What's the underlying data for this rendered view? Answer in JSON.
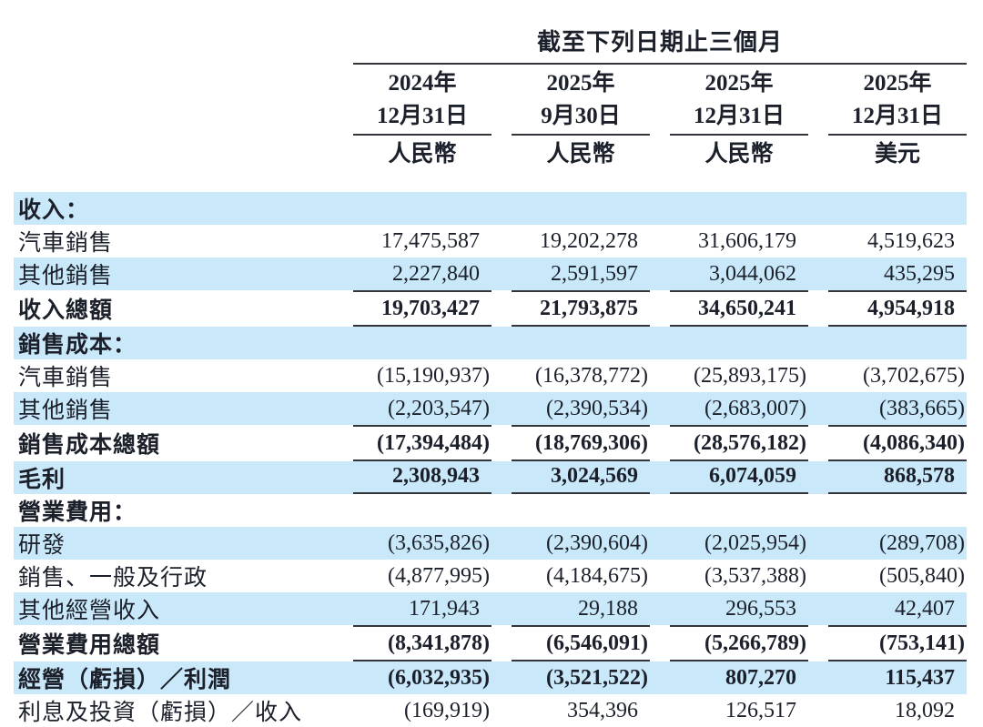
{
  "table": {
    "title": "截至下列日期止三個月",
    "columns": [
      {
        "year": "2024年",
        "date": "12月31日",
        "currency": "人民幣"
      },
      {
        "year": "2025年",
        "date": "9月30日",
        "currency": "人民幣"
      },
      {
        "year": "2025年",
        "date": "12月31日",
        "currency": "人民幣"
      },
      {
        "year": "2025年",
        "date": "12月31日",
        "currency": "美元"
      }
    ],
    "rows": [
      {
        "label": "收入：",
        "values": [
          "",
          "",
          "",
          ""
        ],
        "bold": true,
        "stripe": true,
        "section": true
      },
      {
        "label": "汽車銷售",
        "values": [
          "17,475,587",
          "19,202,278",
          "31,606,179",
          "4,519,623"
        ],
        "bold": false,
        "stripe": false
      },
      {
        "label": "其他銷售",
        "values": [
          "2,227,840",
          "2,591,597",
          "3,044,062",
          "435,295"
        ],
        "bold": false,
        "stripe": true
      },
      {
        "label": "收入總額",
        "values": [
          "19,703,427",
          "21,793,875",
          "34,650,241",
          "4,954,918"
        ],
        "bold": true,
        "stripe": false,
        "rule_top": true,
        "rule_bottom": true
      },
      {
        "label": "銷售成本：",
        "values": [
          "",
          "",
          "",
          ""
        ],
        "bold": true,
        "stripe": true,
        "section": true
      },
      {
        "label": "汽車銷售",
        "values": [
          "(15,190,937)",
          "(16,378,772)",
          "(25,893,175)",
          "(3,702,675)"
        ],
        "bold": false,
        "stripe": false
      },
      {
        "label": "其他銷售",
        "values": [
          "(2,203,547)",
          "(2,390,534)",
          "(2,683,007)",
          "(383,665)"
        ],
        "bold": false,
        "stripe": true
      },
      {
        "label": "銷售成本總額",
        "values": [
          "(17,394,484)",
          "(18,769,306)",
          "(28,576,182)",
          "(4,086,340)"
        ],
        "bold": true,
        "stripe": false,
        "rule_top": true,
        "rule_bottom": true
      },
      {
        "label": "毛利",
        "values": [
          "2,308,943",
          "3,024,569",
          "6,074,059",
          "868,578"
        ],
        "bold": true,
        "stripe": true,
        "rule_bottom": true
      },
      {
        "label": "營業費用：",
        "values": [
          "",
          "",
          "",
          ""
        ],
        "bold": true,
        "stripe": false,
        "section": true
      },
      {
        "label": "研發",
        "values": [
          "(3,635,826)",
          "(2,390,604)",
          "(2,025,954)",
          "(289,708)"
        ],
        "bold": false,
        "stripe": true
      },
      {
        "label": "銷售、一般及行政",
        "values": [
          "(4,877,995)",
          "(4,184,675)",
          "(3,537,388)",
          "(505,840)"
        ],
        "bold": false,
        "stripe": false
      },
      {
        "label": "其他經營收入",
        "values": [
          "171,943",
          "29,188",
          "296,553",
          "42,407"
        ],
        "bold": false,
        "stripe": true
      },
      {
        "label": "營業費用總額",
        "values": [
          "(8,341,878)",
          "(6,546,091)",
          "(5,266,789)",
          "(753,141)"
        ],
        "bold": true,
        "stripe": false,
        "rule_top": true,
        "rule_bottom": true
      },
      {
        "label": "經營（虧損）／利潤",
        "values": [
          "(6,032,935)",
          "(3,521,522)",
          "807,270",
          "115,437"
        ],
        "bold": true,
        "stripe": true
      },
      {
        "label": "利息及投資（虧損）／收入",
        "values": [
          "(169,919)",
          "354,396",
          "126,517",
          "18,092"
        ],
        "bold": false,
        "stripe": false
      }
    ],
    "colors": {
      "stripe_blue": "#c9e8f9",
      "rule": "#33353a",
      "text": "#1b202b",
      "background": "#ffffff"
    }
  }
}
